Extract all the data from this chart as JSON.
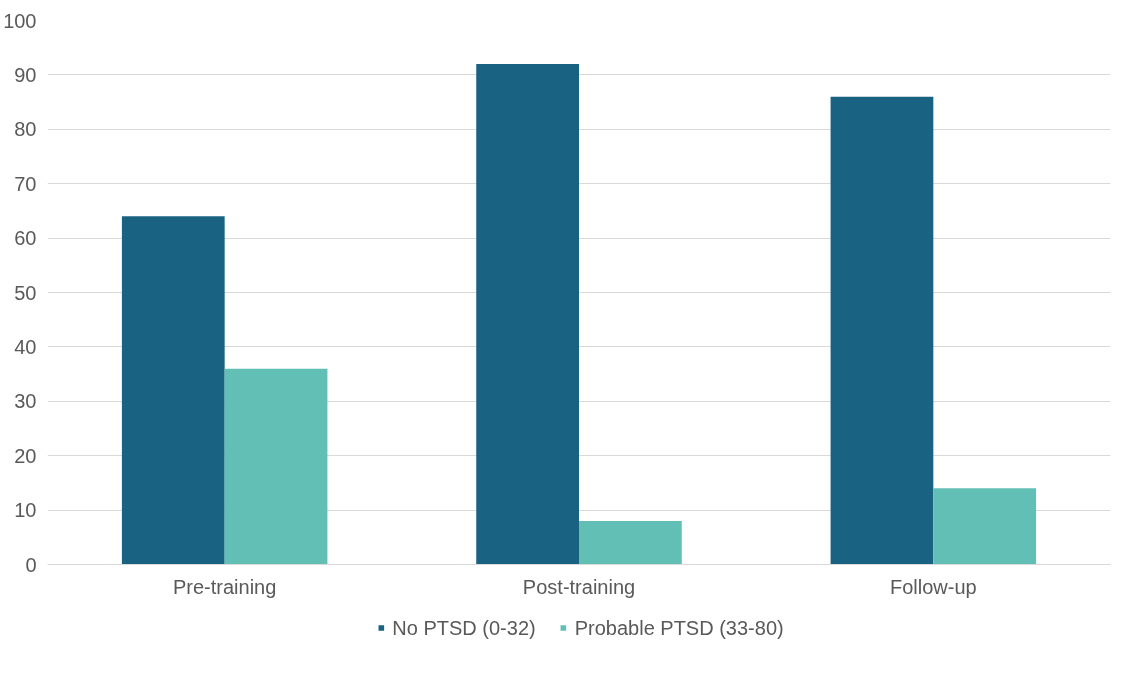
{
  "chart_data": {
    "type": "bar",
    "categories": [
      "Pre-training",
      "Post-training",
      "Follow-up"
    ],
    "series": [
      {
        "name": "No PTSD (0-32)",
        "color": "#1a6282",
        "values": [
          64,
          92,
          86
        ]
      },
      {
        "name": "Probable PTSD (33-80)",
        "color": "#62bfb5",
        "values": [
          36,
          8,
          14
        ]
      }
    ],
    "ylim": [
      0,
      100
    ],
    "yticks": [
      0,
      10,
      20,
      30,
      40,
      50,
      60,
      70,
      80,
      90,
      100
    ],
    "grid": "y",
    "legend": "bottom"
  }
}
